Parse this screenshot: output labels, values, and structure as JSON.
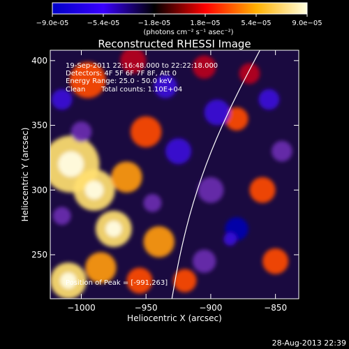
{
  "colorbar": {
    "min": -9e-05,
    "max": 9e-05,
    "ticks": [
      "-9.0e-05",
      "-5.4e-05",
      "-1.8e-05",
      "1.8e-05",
      "5.4e-05",
      "9.0e-05"
    ],
    "unit_label": "(photons cm⁻² s⁻¹ asec⁻²)",
    "colors": [
      "#0000c8",
      "#3a00ff",
      "#000000",
      "#ff0000",
      "#ffb000",
      "#ffffe0"
    ]
  },
  "chart_data": {
    "type": "heatmap",
    "title": "Reconstructed RHESSI Image",
    "xlabel": "Heliocentric X (arcsec)",
    "ylabel": "Heliocentric Y (arcsec)",
    "xlim": [
      -1024,
      -832
    ],
    "ylim": [
      216,
      408
    ],
    "xticks": [
      {
        "value": -1000,
        "label": "−1000"
      },
      {
        "value": -950,
        "label": "−950"
      },
      {
        "value": -900,
        "label": "−900"
      },
      {
        "value": -850,
        "label": "−850"
      }
    ],
    "yticks": [
      {
        "value": 250,
        "label": "250"
      },
      {
        "value": 300,
        "label": "300"
      },
      {
        "value": 350,
        "label": "350"
      },
      {
        "value": 400,
        "label": "400"
      }
    ],
    "limb_curve": [
      {
        "x": -930,
        "y": 216
      },
      {
        "x": -924,
        "y": 250
      },
      {
        "x": -914,
        "y": 290
      },
      {
        "x": -900,
        "y": 330
      },
      {
        "x": -882,
        "y": 370
      },
      {
        "x": -862,
        "y": 408
      }
    ],
    "blobs": [
      {
        "x": -1008,
        "y": 320,
        "s": 22,
        "a": 1.0
      },
      {
        "x": -990,
        "y": 300,
        "s": 16,
        "a": 0.9
      },
      {
        "x": -975,
        "y": 270,
        "s": 14,
        "a": 0.85
      },
      {
        "x": -1010,
        "y": 230,
        "s": 14,
        "a": 0.9
      },
      {
        "x": -985,
        "y": 240,
        "s": 12,
        "a": 0.7
      },
      {
        "x": -950,
        "y": 345,
        "s": 12,
        "a": 0.6
      },
      {
        "x": -965,
        "y": 310,
        "s": 12,
        "a": 0.7
      },
      {
        "x": -940,
        "y": 260,
        "s": 12,
        "a": 0.75
      },
      {
        "x": -955,
        "y": 230,
        "s": 10,
        "a": 0.6
      },
      {
        "x": -995,
        "y": 385,
        "s": 14,
        "a": 0.55
      },
      {
        "x": -960,
        "y": 400,
        "s": 10,
        "a": 0.45
      },
      {
        "x": -905,
        "y": 395,
        "s": 9,
        "a": 0.45
      },
      {
        "x": -880,
        "y": 355,
        "s": 9,
        "a": 0.55
      },
      {
        "x": -860,
        "y": 300,
        "s": 10,
        "a": 0.6
      },
      {
        "x": -850,
        "y": 245,
        "s": 10,
        "a": 0.55
      },
      {
        "x": -870,
        "y": 390,
        "s": 8,
        "a": 0.45
      },
      {
        "x": -920,
        "y": 230,
        "s": 9,
        "a": 0.5
      },
      {
        "x": -1015,
        "y": 370,
        "s": 8,
        "a": -0.5
      },
      {
        "x": -925,
        "y": 330,
        "s": 10,
        "a": -0.6
      },
      {
        "x": -935,
        "y": 380,
        "s": 9,
        "a": -0.6
      },
      {
        "x": -895,
        "y": 360,
        "s": 10,
        "a": -0.65
      },
      {
        "x": -880,
        "y": 270,
        "s": 9,
        "a": -0.75
      },
      {
        "x": -885,
        "y": 262,
        "s": 5,
        "a": -0.5
      },
      {
        "x": -855,
        "y": 370,
        "s": 8,
        "a": -0.5
      },
      {
        "x": -845,
        "y": 330,
        "s": 8,
        "a": -0.45
      },
      {
        "x": -900,
        "y": 300,
        "s": 10,
        "a": -0.4
      },
      {
        "x": -1000,
        "y": 345,
        "s": 8,
        "a": -0.45
      },
      {
        "x": -905,
        "y": 245,
        "s": 9,
        "a": -0.45
      },
      {
        "x": -945,
        "y": 290,
        "s": 7,
        "a": -0.4
      },
      {
        "x": -1015,
        "y": 280,
        "s": 7,
        "a": -0.45
      }
    ]
  },
  "annotations": {
    "time_range": "19-Sep-2011 22:16:48.000 to 22:22:18.000",
    "detectors": "Detectors: 4F 5F 6F 7F 8F, Att 0",
    "energy": "Energy Range: 25.0 - 50.0 keV",
    "clean_label": "Clean",
    "total_counts": "Total counts: 1.10E+04",
    "peak": "Position of Peak = [-991,263]"
  },
  "footer": {
    "date": "28-Aug-2013 22:39"
  }
}
